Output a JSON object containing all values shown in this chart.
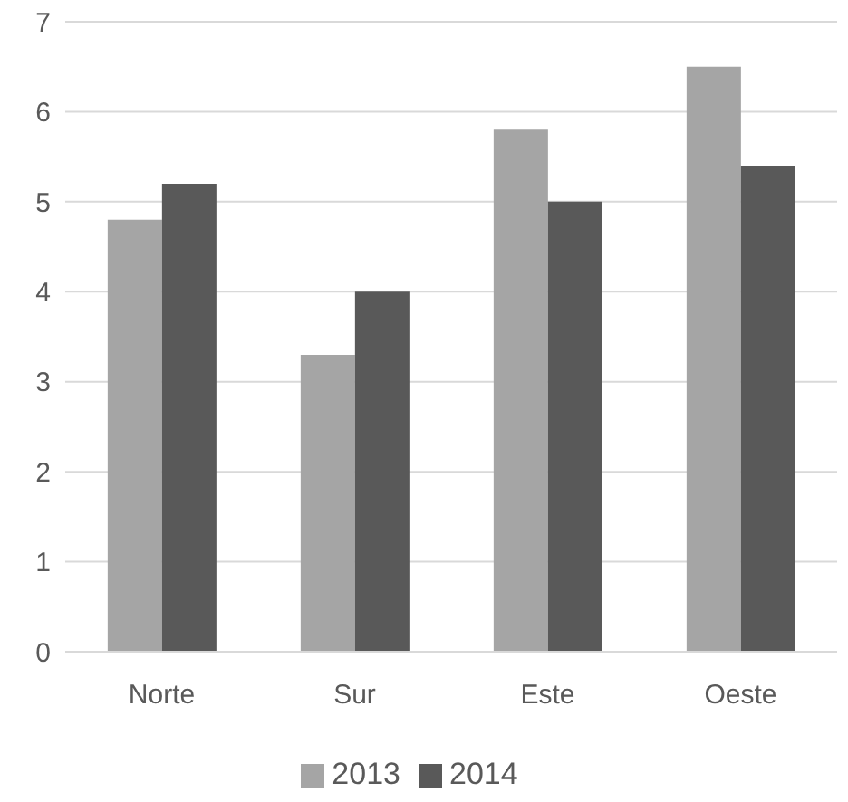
{
  "chart_data": {
    "type": "bar",
    "categories": [
      "Norte",
      "Sur",
      "Este",
      "Oeste"
    ],
    "series": [
      {
        "name": "2013",
        "color": "#a5a5a5",
        "values": [
          4.8,
          3.3,
          5.8,
          6.5
        ]
      },
      {
        "name": "2014",
        "color": "#595959",
        "values": [
          5.2,
          4.0,
          5.0,
          5.4
        ]
      }
    ],
    "ylim": [
      0,
      7
    ],
    "yticks": [
      0,
      1,
      2,
      3,
      4,
      5,
      6,
      7
    ],
    "grid": "y",
    "legend": "bottom"
  }
}
